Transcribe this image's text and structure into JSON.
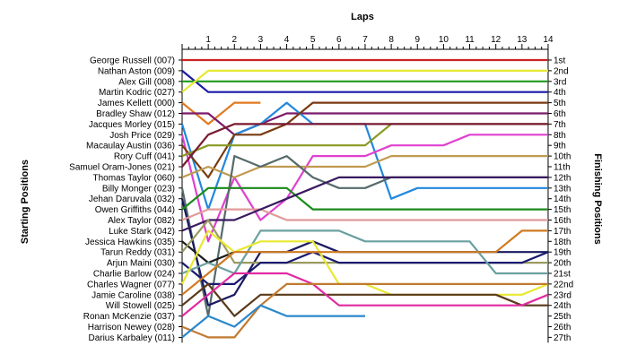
{
  "chart_data": {
    "type": "line",
    "title": "Laps",
    "xlabel": "Laps",
    "ylabel_left": "Starting Positions",
    "ylabel_right": "Finishing Positions",
    "laps": [
      1,
      2,
      3,
      4,
      5,
      6,
      7,
      8,
      9,
      10,
      11,
      12,
      13,
      14
    ],
    "x_ticks": [
      "1",
      "2",
      "3",
      "4",
      "5",
      "6",
      "7",
      "8",
      "9",
      "10",
      "11",
      "12",
      "13",
      "14"
    ],
    "grid": false,
    "finishing_labels": [
      "1st",
      "2nd",
      "3rd",
      "4th",
      "5th",
      "6th",
      "7th",
      "8th",
      "9th",
      "10th",
      "11th",
      "12th",
      "13th",
      "14th",
      "15th",
      "16th",
      "17th",
      "18th",
      "19th",
      "20th",
      "21st",
      "22nd",
      "23rd",
      "24th",
      "25th",
      "26th",
      "27th"
    ],
    "series": [
      {
        "name": "George Russell (007)",
        "color": "#cc2222",
        "positions": [
          1,
          1,
          1,
          1,
          1,
          1,
          1,
          1,
          1,
          1,
          1,
          1,
          1,
          1,
          1
        ]
      },
      {
        "name": "Nathan Aston (009)",
        "color": "#1a1aa8",
        "positions": [
          2,
          4,
          4,
          4,
          4,
          4,
          4,
          4,
          4,
          4,
          4,
          4,
          4,
          4,
          4
        ]
      },
      {
        "name": "Alex Gill (008)",
        "color": "#1f9a1f",
        "positions": [
          3,
          3,
          3,
          3,
          3,
          3,
          3,
          3,
          3,
          3,
          3,
          3,
          3,
          3,
          3
        ]
      },
      {
        "name": "Martin Kodric (027)",
        "color": "#e8e832",
        "positions": [
          4,
          2,
          2,
          2,
          2,
          2,
          2,
          2,
          2,
          2,
          2,
          2,
          2,
          2,
          2
        ]
      },
      {
        "name": "James Kellett (000)",
        "color": "#e07a20",
        "positions": [
          5,
          7,
          5,
          5
        ]
      },
      {
        "name": "Bradley Shaw (012)",
        "color": "#7a1a6a",
        "positions": [
          6,
          6,
          8,
          7,
          6,
          6,
          6,
          6,
          6,
          6,
          6,
          6,
          6,
          6,
          6
        ]
      },
      {
        "name": "Jacques Morley (015)",
        "color": "#2288dd",
        "positions": [
          7,
          15,
          8,
          7,
          5,
          7,
          7,
          7,
          14,
          13,
          13,
          13,
          13,
          13,
          13
        ]
      },
      {
        "name": "Josh Price (029)",
        "color": "#e040d0",
        "positions": [
          8,
          18,
          12,
          16,
          14,
          10,
          10,
          10,
          9,
          9,
          9,
          8,
          8,
          8,
          8
        ]
      },
      {
        "name": "Macaulay Austin (036)",
        "color": "#7a3a10",
        "positions": [
          9,
          12,
          8,
          8,
          7,
          5,
          5,
          5,
          5,
          5,
          5,
          5,
          5,
          5,
          5
        ]
      },
      {
        "name": "Rory Cuff (041)",
        "color": "#8a9a20",
        "positions": [
          10,
          9,
          9,
          9,
          9,
          9,
          9,
          9,
          7,
          7,
          7,
          7,
          7,
          7,
          7
        ]
      },
      {
        "name": "Samuel Oram-Jones (021)",
        "color": "#7a1a30",
        "positions": [
          11,
          8,
          7,
          7,
          7,
          7,
          7,
          7,
          7,
          7,
          7,
          7,
          7,
          7,
          7
        ]
      },
      {
        "name": "Thomas Taylor (060)",
        "color": "#c09a50",
        "positions": [
          12,
          11,
          12,
          11,
          11,
          11,
          11,
          11,
          10,
          10,
          10,
          10,
          10,
          10,
          10
        ]
      },
      {
        "name": "Billy Monger (023)",
        "color": "#556a6a",
        "positions": [
          13,
          25,
          10,
          11,
          10,
          12,
          13,
          13,
          12,
          12,
          12,
          12,
          12,
          12,
          12
        ]
      },
      {
        "name": "Jehan Daruvala (032)",
        "color": "#1a1a60",
        "positions": [
          14,
          24,
          23,
          19,
          19,
          18,
          19,
          19,
          19,
          19,
          19,
          19,
          19,
          19,
          19
        ]
      },
      {
        "name": "Owen Griffiths (044)",
        "color": "#1a8a1a",
        "positions": [
          15,
          13,
          13,
          13,
          13,
          15,
          15,
          15,
          15,
          15,
          15,
          15,
          15,
          15,
          15
        ]
      },
      {
        "name": "Alex Taylor (082)",
        "color": "#e09a9a",
        "positions": [
          16,
          15,
          15,
          15,
          16,
          16,
          16,
          16,
          16,
          16,
          16,
          16,
          16,
          16,
          16
        ]
      },
      {
        "name": "Luke Stark (042)",
        "color": "#3a1a60",
        "positions": [
          17,
          16,
          16,
          15,
          14,
          13,
          12,
          12,
          12,
          12,
          12,
          12,
          12,
          12,
          12
        ]
      },
      {
        "name": "Jessica Hawkins (035)",
        "color": "#1a1a1a",
        "positions": [
          18,
          20,
          19
        ]
      },
      {
        "name": "Tarun Reddy (031)",
        "color": "#9a9a60",
        "positions": [
          19,
          16,
          20,
          20,
          20,
          20,
          20,
          20,
          20,
          20,
          20,
          20,
          20,
          20,
          20
        ]
      },
      {
        "name": "Arjun Maini (030)",
        "color": "#1a1a70",
        "positions": [
          20,
          22,
          22,
          20,
          20,
          19,
          20,
          20,
          20,
          20,
          20,
          20,
          20,
          20,
          19
        ]
      },
      {
        "name": "Charlie Barlow (024)",
        "color": "#6aa0a0",
        "positions": [
          21,
          20,
          21,
          17,
          17,
          17,
          17,
          18,
          18,
          18,
          18,
          18,
          21,
          21,
          21
        ]
      },
      {
        "name": "Charles Wagner (077)",
        "color": "#e8e832",
        "positions": [
          22,
          17,
          19,
          18,
          18,
          18,
          22,
          22,
          23,
          23,
          23,
          23,
          23,
          23,
          22
        ]
      },
      {
        "name": "Jamie Caroline (038)",
        "color": "#d07a20",
        "positions": [
          23,
          21,
          19,
          19,
          19,
          19,
          19,
          19,
          19,
          19,
          19,
          19,
          19,
          17,
          17
        ]
      },
      {
        "name": "Will Stowell (025)",
        "color": "#5a3a1a",
        "positions": [
          24,
          22,
          25,
          23,
          23,
          23,
          23,
          23,
          23,
          23,
          23,
          23,
          23,
          24,
          24
        ]
      },
      {
        "name": "Ronan McKenzie (037)",
        "color": "#e02aa0",
        "positions": [
          25,
          23,
          21,
          21,
          21,
          22,
          24,
          24,
          24,
          24,
          24,
          24,
          24,
          24,
          23
        ]
      },
      {
        "name": "Harrison Newey (028)",
        "color": "#c07a30",
        "positions": [
          26,
          27,
          27,
          24,
          22,
          22,
          22,
          22,
          22,
          22,
          22,
          22,
          22,
          22,
          22
        ]
      },
      {
        "name": "Darius Karbaley (011)",
        "color": "#2a88cc",
        "positions": [
          27,
          25,
          26,
          24,
          25,
          25,
          25,
          25
        ]
      }
    ]
  }
}
